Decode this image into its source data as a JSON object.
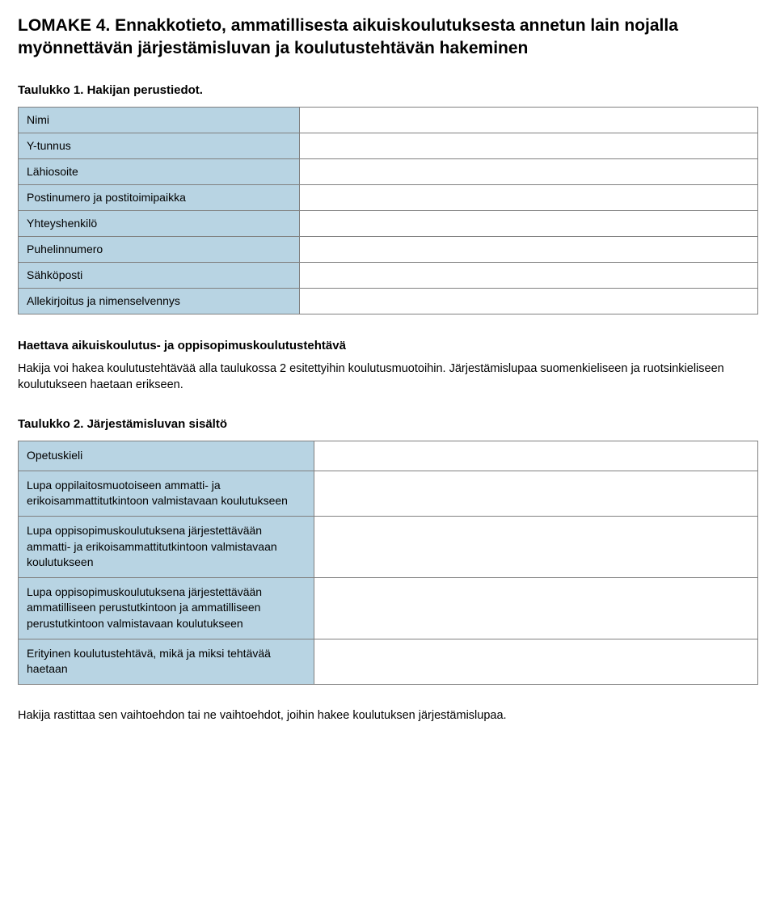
{
  "doc_title": "LOMAKE 4. Ennakkotieto, ammatillisesta aikuiskoulutuksesta annetun lain nojalla myönnettävän järjestämisluvan ja koulutustehtävän hakeminen",
  "table1": {
    "heading": "Taulukko 1. Hakijan perustiedot.",
    "rows": [
      "Nimi",
      "Y-tunnus",
      "Lähiosoite",
      "Postinumero ja postitoimipaikka",
      "Yhteyshenkilö",
      "Puhelinnumero",
      "Sähköposti",
      "Allekirjoitus ja nimenselvennys"
    ]
  },
  "mid_heading": "Haettava aikuiskoulutus- ja oppisopimuskoulutustehtävä",
  "mid_para": "Hakija voi hakea koulutustehtävää alla taulukossa 2 esitettyihin koulutusmuotoihin. Järjestämislupaa suomenkieliseen ja ruotsinkieliseen koulutukseen haetaan erikseen.",
  "table2": {
    "heading": "Taulukko 2. Järjestämisluvan sisältö",
    "rows": [
      "Opetuskieli",
      "Lupa oppilaitosmuotoiseen ammatti- ja erikoisammattitutkintoon valmistavaan koulutukseen",
      "Lupa oppisopimuskoulutuksena järjestettävään ammatti- ja erikoisammattitutkintoon valmistavaan koulutukseen",
      "Lupa oppisopimuskoulutuksena järjestettävään ammatilliseen perustutkintoon ja ammatilliseen perustutkintoon valmistavaan koulutukseen",
      "Erityinen koulutustehtävä, mikä ja miksi tehtävää haetaan"
    ]
  },
  "footer": "Hakija rastittaa sen vaihtoehdon tai ne vaihtoehdot, joihin hakee koulutuksen järjestämislupaa."
}
